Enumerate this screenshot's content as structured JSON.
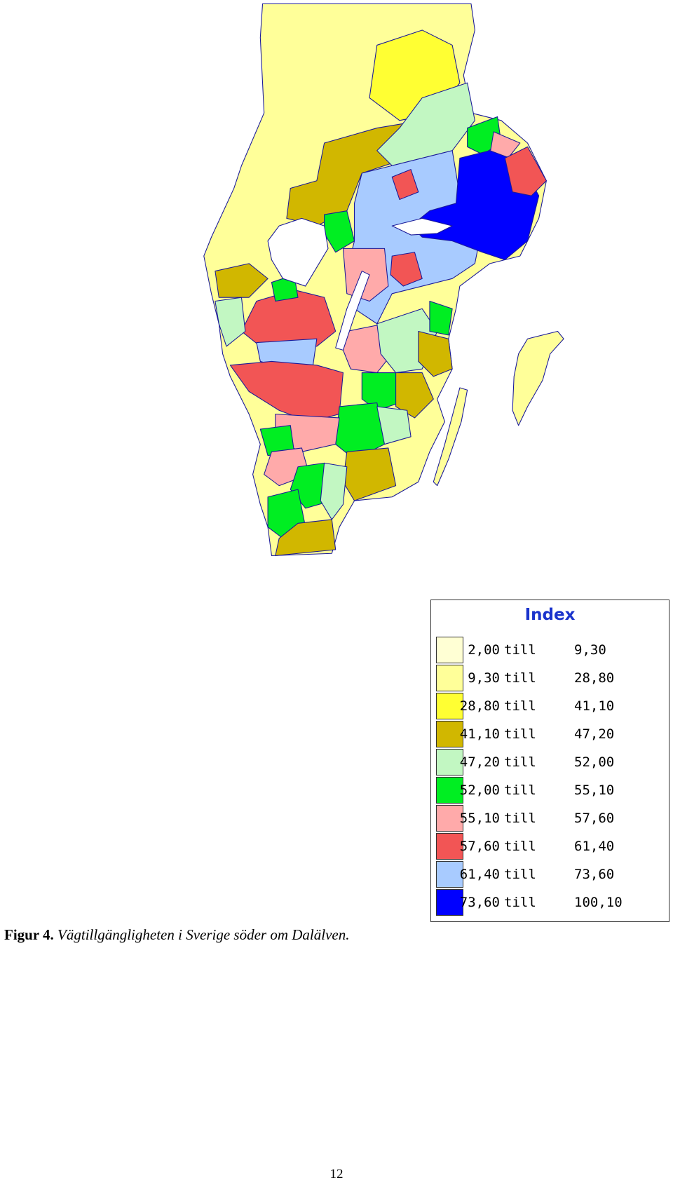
{
  "legend": {
    "title": "Index",
    "rows": [
      {
        "from": "2,00",
        "till": "till",
        "to": "9,30",
        "color": "#ffffd4"
      },
      {
        "from": "9,30",
        "till": "till",
        "to": "28,80",
        "color": "#ffff99"
      },
      {
        "from": "28,80",
        "till": "till",
        "to": "41,10",
        "color": "#ffff33"
      },
      {
        "from": "41,10",
        "till": "till",
        "to": "47,20",
        "color": "#d1b700"
      },
      {
        "from": "47,20",
        "till": "till",
        "to": "52,00",
        "color": "#c2f7c2"
      },
      {
        "from": "52,00",
        "till": "till",
        "to": "55,10",
        "color": "#00ee22"
      },
      {
        "from": "55,10",
        "till": "till",
        "to": "57,60",
        "color": "#ffaaaa"
      },
      {
        "from": "57,60",
        "till": "till",
        "to": "61,40",
        "color": "#f25555"
      },
      {
        "from": "61,40",
        "till": "till",
        "to": "73,60",
        "color": "#a8cbff"
      },
      {
        "from": "73,60",
        "till": "till",
        "to": "100,10",
        "color": "#0000ff"
      }
    ]
  },
  "caption": {
    "label": "Figur 4.",
    "text": "Vägtillgängligheten i Sverige söder om Dalälven."
  },
  "page_number": "12"
}
